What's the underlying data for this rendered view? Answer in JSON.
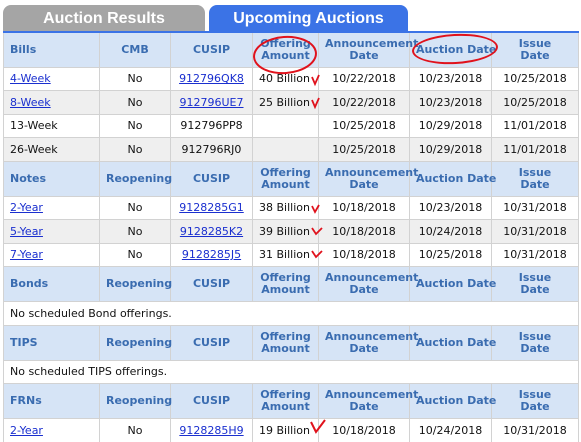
{
  "tabs": {
    "results_label": "Auction Results",
    "upcoming_label": "Upcoming Auctions"
  },
  "sections": {
    "bills": {
      "headers": [
        "Bills",
        "CMB",
        "CUSIP",
        "Offering",
        "Amount",
        "Announcement",
        "Date",
        "Auction Date",
        "Issue",
        "Date"
      ],
      "rows": [
        {
          "term": "4-Week",
          "flag": "No",
          "cusip": "912796QK8",
          "amount": "40 Billion",
          "announce": "10/22/2018",
          "auction": "10/23/2018",
          "issue": "10/25/2018"
        },
        {
          "term": "8-Week",
          "flag": "No",
          "cusip": "912796UE7",
          "amount": "25 Billion",
          "announce": "10/22/2018",
          "auction": "10/23/2018",
          "issue": "10/25/2018"
        },
        {
          "term": "13-Week",
          "flag": "No",
          "cusip": "912796PP8",
          "amount": "",
          "announce": "10/25/2018",
          "auction": "10/29/2018",
          "issue": "11/01/2018"
        },
        {
          "term": "26-Week",
          "flag": "No",
          "cusip": "912796RJ0",
          "amount": "",
          "announce": "10/25/2018",
          "auction": "10/29/2018",
          "issue": "11/01/2018"
        }
      ]
    },
    "notes": {
      "headers": [
        "Notes",
        "Reopening",
        "CUSIP",
        "Offering",
        "Amount",
        "Announcement",
        "Date",
        "Auction Date",
        "Issue",
        "Date"
      ],
      "rows": [
        {
          "term": "2-Year",
          "flag": "No",
          "cusip": "9128285G1",
          "amount": "38 Billion",
          "announce": "10/18/2018",
          "auction": "10/23/2018",
          "issue": "10/31/2018"
        },
        {
          "term": "5-Year",
          "flag": "No",
          "cusip": "9128285K2",
          "amount": "39 Billion",
          "announce": "10/18/2018",
          "auction": "10/24/2018",
          "issue": "10/31/2018"
        },
        {
          "term": "7-Year",
          "flag": "No",
          "cusip": "9128285J5",
          "amount": "31 Billion",
          "announce": "10/18/2018",
          "auction": "10/25/2018",
          "issue": "10/31/2018"
        }
      ]
    },
    "bonds": {
      "headers": [
        "Bonds",
        "Reopening",
        "CUSIP",
        "Offering",
        "Amount",
        "Announcement",
        "Date",
        "Auction Date",
        "Issue",
        "Date"
      ],
      "message": "No scheduled Bond offerings."
    },
    "tips": {
      "headers": [
        "TIPS",
        "Reopening",
        "CUSIP",
        "Offering",
        "Amount",
        "Announcement",
        "Date",
        "Auction Date",
        "Issue",
        "Date"
      ],
      "message": "No scheduled TIPS offerings."
    },
    "frns": {
      "headers": [
        "FRNs",
        "Reopening",
        "CUSIP",
        "Offering",
        "Amount",
        "Announcement",
        "Date",
        "Auction Date",
        "Issue",
        "Date"
      ],
      "rows": [
        {
          "term": "2-Year",
          "flag": "No",
          "cusip": "9128285H9",
          "amount": "19 Billion",
          "announce": "10/18/2018",
          "auction": "10/24/2018",
          "issue": "10/31/2018"
        }
      ]
    }
  },
  "annotations": {
    "circle_color": "#e0121c",
    "check_mark_icon": "red-check-mark-icon"
  }
}
